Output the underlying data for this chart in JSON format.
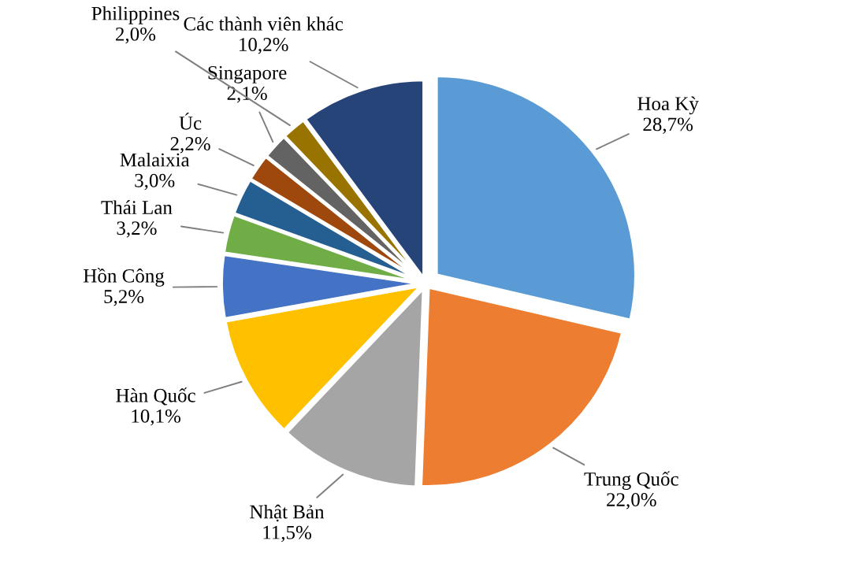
{
  "chart_data": {
    "type": "pie",
    "categories": [
      "Hoa Kỳ",
      "Trung Quốc",
      "Nhật Bản",
      "Hàn Quốc",
      "Hồn Công",
      "Thái Lan",
      "Malaixia",
      "Úc",
      "Singapore",
      "Philippines",
      "Các thành viên khác"
    ],
    "values": [
      28.7,
      22.0,
      11.5,
      10.1,
      5.2,
      3.2,
      3.0,
      2.2,
      2.1,
      2.0,
      10.2
    ],
    "value_labels": [
      "28,7%",
      "22,0%",
      "11,5%",
      "10,1%",
      "5,2%",
      "3,2%",
      "3,0%",
      "2,2%",
      "2,1%",
      "2,0%",
      "10,2%"
    ],
    "colors": [
      "#5b9bd5",
      "#ed7d31",
      "#a5a5a5",
      "#ffc000",
      "#4472c4",
      "#70ad47",
      "#255e91",
      "#9e480e",
      "#636363",
      "#997300",
      "#264478"
    ],
    "legend": false
  }
}
